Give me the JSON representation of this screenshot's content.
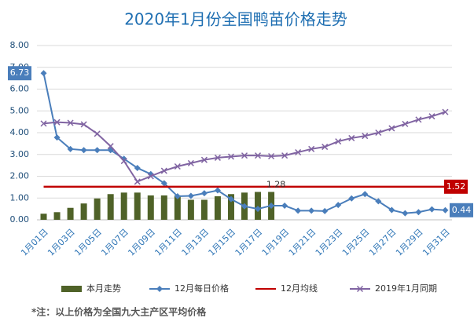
{
  "chart_data": {
    "type": "bar",
    "title": "2020年1月份全国鸭苗价格走势",
    "note": "*注：以上价格为全国九大主产区平均价格",
    "categories": [
      "1月01日",
      null,
      "1月03日",
      null,
      "1月05日",
      null,
      "1月07日",
      null,
      "1月09日",
      null,
      "1月11日",
      null,
      "1月13日",
      null,
      "1月15日",
      null,
      "1月17日",
      null,
      "1月19日",
      null,
      "1月21日",
      null,
      "1月23日",
      null,
      "1月25日",
      null,
      "1月27日",
      null,
      "1月29日",
      null,
      "1月31日"
    ],
    "ylim": [
      0,
      8
    ],
    "yticks": [
      {
        "value": 0,
        "label": "0.00"
      },
      {
        "value": 1,
        "label": "1.00"
      },
      {
        "value": 2,
        "label": "2.00"
      },
      {
        "value": 3,
        "label": "3.00"
      },
      {
        "value": 4,
        "label": "4.00"
      },
      {
        "value": 5,
        "label": "5.00"
      },
      {
        "value": 6,
        "label": "6.00"
      },
      {
        "value": 7,
        "label": "7.00"
      },
      {
        "value": 8,
        "label": "8.00"
      }
    ],
    "grid": true,
    "legend": "bottom",
    "series": [
      {
        "name": "本月走势",
        "type": "bar",
        "color": "#4f6228",
        "values": [
          0.28,
          0.35,
          0.55,
          0.75,
          0.98,
          1.18,
          1.25,
          1.25,
          1.12,
          1.12,
          1.12,
          0.92,
          0.92,
          1.08,
          1.18,
          1.25,
          1.28,
          1.28,
          null,
          null,
          null,
          null,
          null,
          null,
          null,
          null,
          null,
          null,
          null,
          null,
          null
        ],
        "value_labels": [
          null,
          null,
          null,
          null,
          null,
          null,
          null,
          null,
          null,
          null,
          null,
          null,
          null,
          null,
          null,
          null,
          null,
          "1.28",
          null,
          null,
          null,
          null,
          null,
          null,
          null,
          null,
          null,
          null,
          null,
          null,
          null
        ]
      },
      {
        "name": "12月每日价格",
        "type": "line",
        "marker": "diamond",
        "color": "#4a7ebb",
        "values": [
          6.73,
          3.78,
          3.25,
          3.2,
          3.2,
          3.2,
          2.8,
          2.38,
          2.1,
          1.68,
          1.08,
          1.1,
          1.22,
          1.35,
          0.95,
          0.62,
          0.5,
          0.65,
          0.65,
          0.42,
          0.42,
          0.4,
          0.68,
          0.98,
          1.18,
          0.85,
          0.45,
          0.3,
          0.35,
          0.48,
          0.44
        ],
        "value_labels": [
          "6.73",
          null,
          null,
          null,
          null,
          null,
          null,
          null,
          null,
          null,
          null,
          null,
          null,
          null,
          null,
          null,
          null,
          null,
          null,
          null,
          null,
          null,
          null,
          null,
          null,
          null,
          null,
          null,
          null,
          null,
          "0.44"
        ]
      },
      {
        "name": "12月均线",
        "type": "line",
        "marker": "none",
        "color": "#c00000",
        "values": [
          1.52,
          1.52,
          1.52,
          1.52,
          1.52,
          1.52,
          1.52,
          1.52,
          1.52,
          1.52,
          1.52,
          1.52,
          1.52,
          1.52,
          1.52,
          1.52,
          1.52,
          1.52,
          1.52,
          1.52,
          1.52,
          1.52,
          1.52,
          1.52,
          1.52,
          1.52,
          1.52,
          1.52,
          1.52,
          1.52,
          1.52
        ],
        "value_labels": [
          null,
          null,
          null,
          null,
          null,
          null,
          null,
          null,
          null,
          null,
          null,
          null,
          null,
          null,
          null,
          null,
          null,
          null,
          null,
          null,
          null,
          null,
          null,
          null,
          null,
          null,
          null,
          null,
          null,
          null,
          "1.52"
        ]
      },
      {
        "name": "2019年1月同期",
        "type": "line",
        "marker": "x",
        "color": "#8064a2",
        "values": [
          4.42,
          4.48,
          4.45,
          4.38,
          3.95,
          3.38,
          2.7,
          1.75,
          2.0,
          2.25,
          2.45,
          2.6,
          2.75,
          2.85,
          2.9,
          2.95,
          2.95,
          2.92,
          2.95,
          3.1,
          3.25,
          3.35,
          3.6,
          3.75,
          3.85,
          4.0,
          4.2,
          4.4,
          4.6,
          4.75,
          4.95
        ]
      }
    ]
  }
}
